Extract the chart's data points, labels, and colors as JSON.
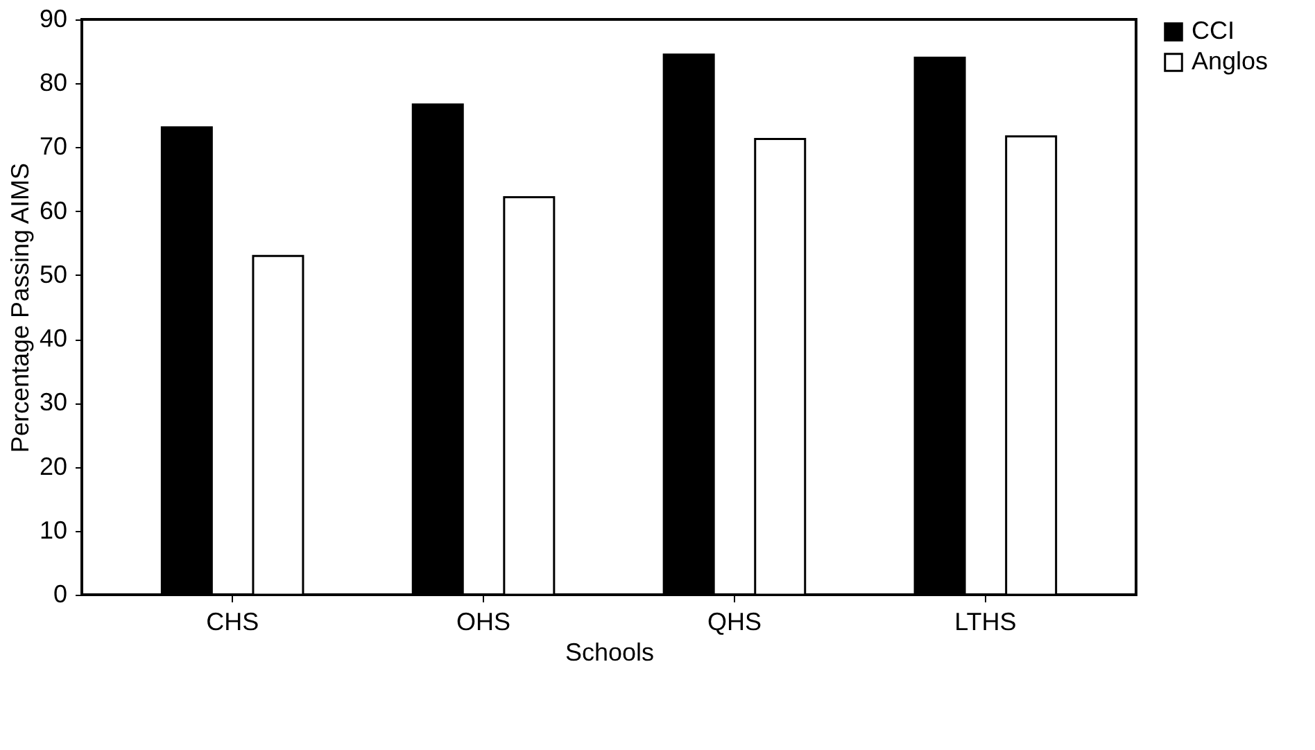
{
  "chart_data": {
    "type": "bar",
    "xlabel": "Schools",
    "ylabel": "Percentage Passing AIMS",
    "categories": [
      "CHS",
      "OHS",
      "QHS",
      "LTHS"
    ],
    "series": [
      {
        "name": "CCI",
        "color": "#000000",
        "values": [
          73.1,
          76.7,
          84.5,
          84.0
        ]
      },
      {
        "name": "Anglos",
        "color": "#ffffff",
        "values": [
          53.0,
          62.2,
          71.3,
          71.7
        ]
      }
    ],
    "ylim": [
      0,
      90
    ],
    "yticks": [
      0,
      10,
      20,
      30,
      40,
      50,
      60,
      70,
      80,
      90
    ],
    "grid": false,
    "legend": "right"
  }
}
